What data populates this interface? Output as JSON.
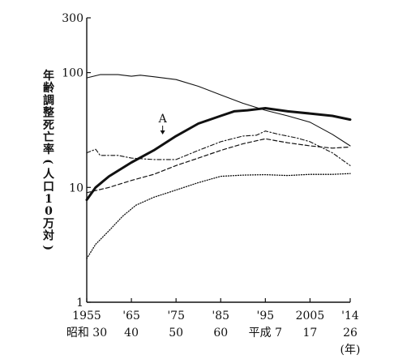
{
  "chart_data": {
    "type": "line",
    "scale": "log",
    "ylabel": "年齢調整死亡率(人口10万対)",
    "ylim": [
      1,
      300
    ],
    "y_ticks": [
      "1",
      "10",
      "100",
      "300"
    ],
    "y_tick_values": [
      1,
      10,
      100,
      300
    ],
    "xlim": [
      1955,
      2014
    ],
    "x_ticks": [
      {
        "year": 1955,
        "top": "1955",
        "bottom": "昭和 30"
      },
      {
        "year": 1965,
        "top": "'65",
        "bottom": "40"
      },
      {
        "year": 1975,
        "top": "'75",
        "bottom": "50"
      },
      {
        "year": 1985,
        "top": "'85",
        "bottom": "60"
      },
      {
        "year": 1995,
        "top": "'95",
        "bottom": "平成 7"
      },
      {
        "year": 2005,
        "top": "2005",
        "bottom": "17"
      },
      {
        "year": 2014,
        "top": "'14",
        "bottom": "26"
      }
    ],
    "x_unit": "(年)",
    "annotations": [
      {
        "text": "A",
        "x": 1972,
        "y": 27.5
      }
    ],
    "grid": false,
    "series": [
      {
        "style": "thin-solid",
        "color": "#111111",
        "points": [
          [
            1955,
            90
          ],
          [
            1958,
            96
          ],
          [
            1962,
            96
          ],
          [
            1965,
            93
          ],
          [
            1967,
            95
          ],
          [
            1970,
            92
          ],
          [
            1975,
            87
          ],
          [
            1980,
            76
          ],
          [
            1985,
            64
          ],
          [
            1990,
            54
          ],
          [
            1995,
            47
          ],
          [
            2000,
            42
          ],
          [
            2005,
            37
          ],
          [
            2010,
            29
          ],
          [
            2014,
            23
          ]
        ]
      },
      {
        "style": "thick-solid",
        "color": "#111111",
        "points": [
          [
            1955,
            7.8
          ],
          [
            1957,
            10
          ],
          [
            1960,
            12.5
          ],
          [
            1965,
            16.5
          ],
          [
            1970,
            21
          ],
          [
            1975,
            28
          ],
          [
            1980,
            36
          ],
          [
            1985,
            42
          ],
          [
            1988,
            46
          ],
          [
            1991,
            47
          ],
          [
            1995,
            49
          ],
          [
            2000,
            46
          ],
          [
            2005,
            44
          ],
          [
            2010,
            42
          ],
          [
            2014,
            39
          ]
        ]
      },
      {
        "style": "dash-dot",
        "color": "#111111",
        "points": [
          [
            1955,
            20
          ],
          [
            1957,
            21.5
          ],
          [
            1958,
            19
          ],
          [
            1962,
            19
          ],
          [
            1965,
            18
          ],
          [
            1970,
            17.5
          ],
          [
            1975,
            17.5
          ],
          [
            1980,
            21
          ],
          [
            1985,
            25
          ],
          [
            1990,
            28
          ],
          [
            1993,
            28.5
          ],
          [
            1995,
            31
          ],
          [
            1998,
            29
          ],
          [
            2002,
            27
          ],
          [
            2005,
            25
          ],
          [
            2010,
            20
          ],
          [
            2014,
            15.5
          ]
        ]
      },
      {
        "style": "dashed",
        "color": "#111111",
        "points": [
          [
            1955,
            9
          ],
          [
            1960,
            10
          ],
          [
            1965,
            11.5
          ],
          [
            1970,
            13
          ],
          [
            1975,
            15.5
          ],
          [
            1980,
            18
          ],
          [
            1985,
            21
          ],
          [
            1990,
            24
          ],
          [
            1995,
            26.5
          ],
          [
            2000,
            24.5
          ],
          [
            2005,
            23
          ],
          [
            2010,
            22
          ],
          [
            2014,
            22.5
          ]
        ]
      },
      {
        "style": "dotted",
        "color": "#111111",
        "points": [
          [
            1955,
            2.4
          ],
          [
            1957,
            3.2
          ],
          [
            1960,
            4.2
          ],
          [
            1963,
            5.6
          ],
          [
            1966,
            7
          ],
          [
            1970,
            8.2
          ],
          [
            1975,
            9.5
          ],
          [
            1980,
            11
          ],
          [
            1985,
            12.5
          ],
          [
            1990,
            12.8
          ],
          [
            1995,
            12.9
          ],
          [
            2000,
            12.7
          ],
          [
            2005,
            13
          ],
          [
            2010,
            13
          ],
          [
            2014,
            13.2
          ]
        ]
      }
    ]
  }
}
